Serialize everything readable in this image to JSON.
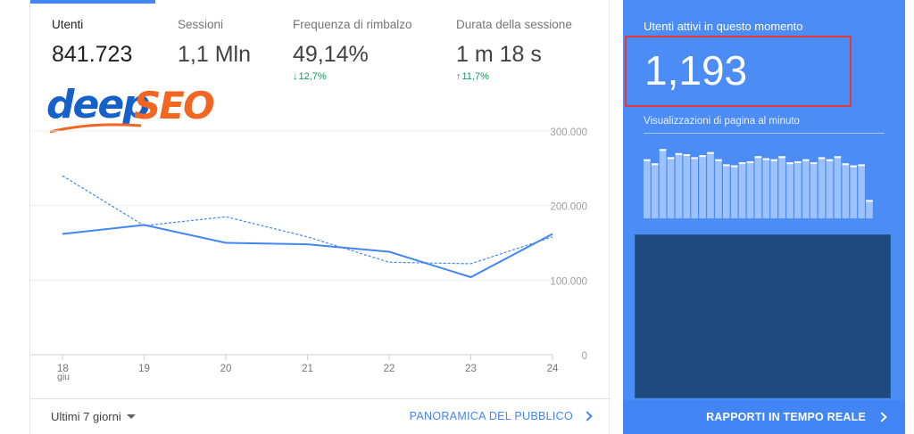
{
  "metrics": [
    {
      "label": "Utenti",
      "value": "841.723",
      "delta": "",
      "active": true
    },
    {
      "label": "Sessioni",
      "value": "1,1 Mln",
      "delta": ""
    },
    {
      "label": "Frequenza di rimbalzo",
      "value": "49,14%",
      "delta": "12,7%",
      "delta_dir": "down"
    },
    {
      "label": "Durata della sessione",
      "value": "1 m 18 s",
      "delta": "11,7%",
      "delta_dir": "up"
    }
  ],
  "logo": {
    "part1": "deep",
    "part2": "SEO",
    "color1": "#1560c9",
    "color2": "#f26522"
  },
  "chart_data": {
    "type": "line",
    "categories": [
      "18",
      "19",
      "20",
      "21",
      "22",
      "23",
      "24"
    ],
    "x_sublabel": "giu",
    "y_ticks": [
      "300.000",
      "200.000",
      "100.000",
      "0"
    ],
    "ylim": [
      0,
      300000
    ],
    "series": [
      {
        "values": [
          162000,
          174000,
          150000,
          148000,
          138000,
          104000,
          162000
        ],
        "style": "solid",
        "color": "#4285f4"
      },
      {
        "values": [
          240000,
          173000,
          185000,
          158000,
          124000,
          122000,
          158000
        ],
        "style": "dashed",
        "color": "#4285f4"
      }
    ]
  },
  "footer": {
    "range": "Ultimi 7 giorni",
    "link": "PANORAMICA DEL PUBBLICO"
  },
  "realtime": {
    "title": "Utenti attivi in questo momento",
    "value": "1,193",
    "subtitle": "Visualizzazioni di pagina al minuto",
    "link": "RAPPORTI IN TEMPO REALE",
    "pageviews_per_minute": [
      58,
      54,
      68,
      60,
      64,
      63,
      60,
      62,
      65,
      58,
      53,
      52,
      55,
      56,
      61,
      59,
      58,
      61,
      55,
      56,
      58,
      55,
      60,
      58,
      61,
      54,
      52,
      53,
      18
    ],
    "colors": {
      "bg": "#4c8cf5",
      "bar": "#9dc2fb",
      "bar_cap": "#ffffff",
      "map": "#1e4a7e",
      "highlight": "#e53935"
    }
  }
}
